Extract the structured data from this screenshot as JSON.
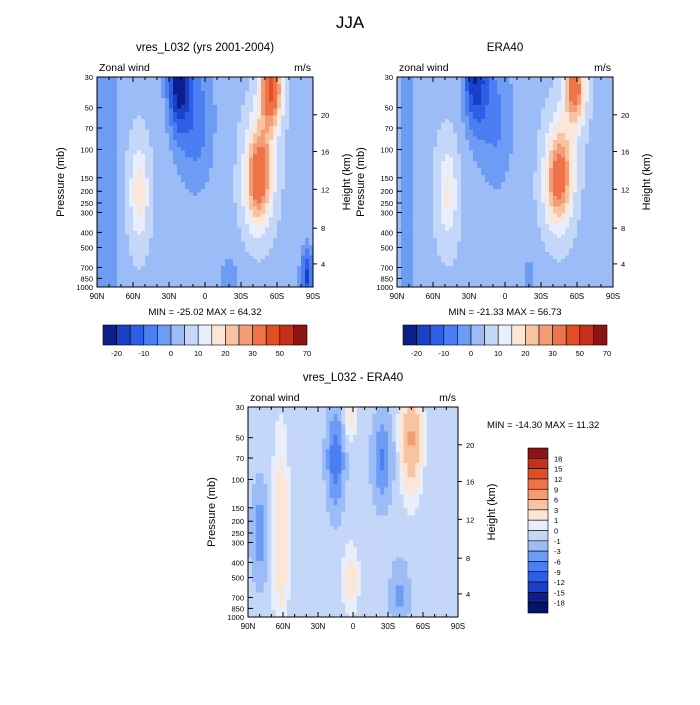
{
  "page_title": "JJA",
  "colors": {
    "min_label_prefix": "MIN",
    "max_label_prefix": "MAX"
  },
  "chart_data": [
    {
      "id": "model",
      "type": "heatmap",
      "title": "vres_L032 (yrs 2001-2004)",
      "left_label": "Zonal wind",
      "right_label": "m/s",
      "ylabel": "Pressure (mb)",
      "ylabel_right": "Height (km)",
      "xticks": [
        "90N",
        "60N",
        "30N",
        "0",
        "30S",
        "60S",
        "90S"
      ],
      "yticks": [
        "30",
        "50",
        "70",
        "100",
        "150",
        "200",
        "250",
        "300",
        "400",
        "500",
        "700",
        "850",
        "1000"
      ],
      "height_ticks": [
        "4",
        "8",
        "12",
        "16",
        "20"
      ],
      "min": "-25.02",
      "max": "64.32",
      "stats_text": "MIN = -25.02   MAX =  64.32",
      "colorbar_labels": [
        "-20",
        "-10",
        "0",
        "10",
        "20",
        "30",
        "50",
        "70"
      ],
      "colorbar_colors": [
        "#0a1e8c",
        "#1a3fc8",
        "#2e5ee6",
        "#4a7ef2",
        "#6d9cf5",
        "#9cbcf7",
        "#c5d7f8",
        "#e8eefb",
        "#fce6d6",
        "#f8c3a3",
        "#f49c74",
        "#ef7348",
        "#e44d22",
        "#c5301a",
        "#8c1414"
      ],
      "xlim": [
        90,
        -90
      ],
      "ylim": [
        1000,
        30
      ]
    },
    {
      "id": "era",
      "type": "heatmap",
      "title": "ERA40",
      "left_label": "zonal wind",
      "right_label": "m/s",
      "ylabel": "Pressure (mb)",
      "ylabel_right": "Height (km)",
      "xticks": [
        "90N",
        "60N",
        "30N",
        "0",
        "30S",
        "60S",
        "90S"
      ],
      "yticks": [
        "30",
        "50",
        "70",
        "100",
        "150",
        "200",
        "250",
        "300",
        "400",
        "500",
        "700",
        "850",
        "1000"
      ],
      "height_ticks": [
        "4",
        "8",
        "12",
        "16",
        "20"
      ],
      "min": "-21.33",
      "max": "56.73",
      "stats_text": "MIN = -21.33   MAX =  56.73",
      "colorbar_labels": [
        "-20",
        "-10",
        "0",
        "10",
        "20",
        "30",
        "50",
        "70"
      ],
      "colorbar_colors": [
        "#0a1e8c",
        "#1a3fc8",
        "#2e5ee6",
        "#4a7ef2",
        "#6d9cf5",
        "#9cbcf7",
        "#c5d7f8",
        "#e8eefb",
        "#fce6d6",
        "#f8c3a3",
        "#f49c74",
        "#ef7348",
        "#e44d22",
        "#c5301a",
        "#8c1414"
      ],
      "xlim": [
        90,
        -90
      ],
      "ylim": [
        1000,
        30
      ]
    },
    {
      "id": "diff",
      "type": "heatmap",
      "title": "vres_L032 - ERA40",
      "left_label": "zonal wind",
      "right_label": "m/s",
      "ylabel": "Pressure (mb)",
      "ylabel_right": "Height (km)",
      "xticks": [
        "90N",
        "60N",
        "30N",
        "0",
        "30S",
        "60S",
        "90S"
      ],
      "yticks": [
        "30",
        "50",
        "70",
        "100",
        "150",
        "200",
        "250",
        "300",
        "400",
        "500",
        "700",
        "850",
        "1000"
      ],
      "height_ticks": [
        "4",
        "8",
        "12",
        "16",
        "20"
      ],
      "min": "-14.30",
      "max": "11.32",
      "stats_text": "MIN = -14.30   MAX =  11.32",
      "colorbar_labels": [
        "18",
        "15",
        "12",
        "9",
        "6",
        "3",
        "1",
        "0",
        "-1",
        "-3",
        "-6",
        "-9",
        "-12",
        "-15",
        "-18"
      ],
      "colorbar_colors": [
        "#8c1414",
        "#c5301a",
        "#e44d22",
        "#ef7348",
        "#f49c74",
        "#f8c3a3",
        "#fce6d6",
        "#e8eefb",
        "#c5d7f8",
        "#9cbcf7",
        "#6d9cf5",
        "#4a7ef2",
        "#2e5ee6",
        "#1a3fc8",
        "#0a1e8c",
        "#05126a"
      ],
      "xlim": [
        90,
        -90
      ],
      "ylim": [
        1000,
        30
      ]
    }
  ]
}
